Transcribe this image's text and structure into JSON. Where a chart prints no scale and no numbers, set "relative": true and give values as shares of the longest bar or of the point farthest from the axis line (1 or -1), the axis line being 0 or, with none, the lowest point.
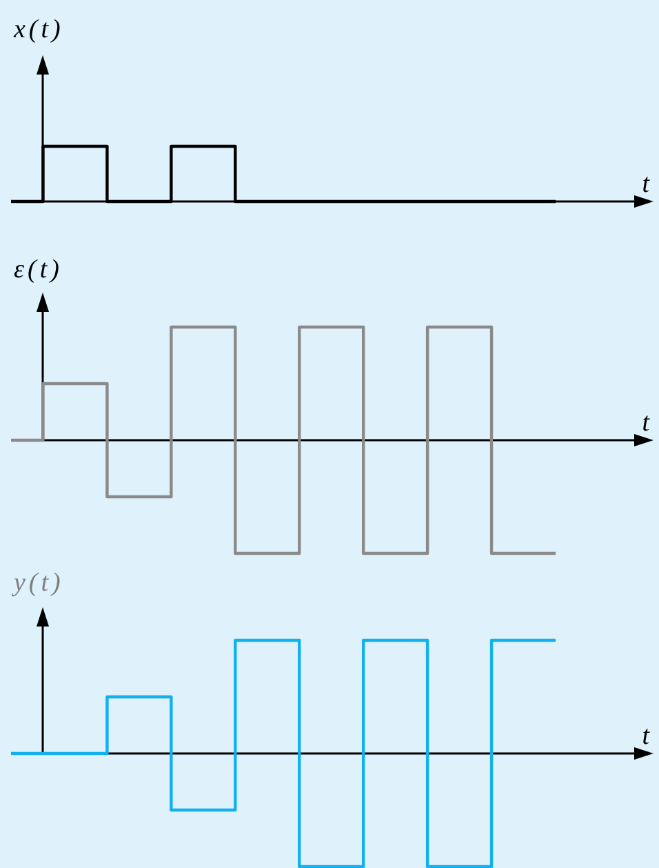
{
  "chart_data": [
    {
      "type": "step",
      "ylabel": "x(t)",
      "xlabel": "t",
      "relative": true,
      "categories": [
        null,
        null,
        null,
        null,
        null,
        null,
        null,
        null,
        null,
        null,
        null,
        null,
        null,
        null,
        null,
        null,
        null,
        null
      ],
      "series": [
        {
          "color": "#000000",
          "values": [
            0,
            1,
            1,
            0,
            0,
            1,
            1,
            0,
            0,
            0,
            0,
            0,
            0,
            0,
            0,
            0,
            0,
            0
          ]
        }
      ]
    },
    {
      "type": "step",
      "ylabel": "ε(t)",
      "xlabel": "t",
      "relative": true,
      "categories": [
        null,
        null,
        null,
        null,
        null,
        null,
        null,
        null,
        null,
        null,
        null,
        null,
        null,
        null,
        null,
        null,
        null,
        null
      ],
      "series": [
        {
          "color": "#8a8a8a",
          "values": [
            0,
            0.5,
            0.5,
            -0.5,
            -0.5,
            1,
            1,
            -1,
            -1,
            1,
            1,
            -1,
            -1,
            1,
            1,
            -1,
            -1,
            -1
          ]
        }
      ]
    },
    {
      "type": "step",
      "ylabel": "y(t)",
      "xlabel": "t",
      "relative": true,
      "categories": [
        null,
        null,
        null,
        null,
        null,
        null,
        null,
        null,
        null,
        null,
        null,
        null,
        null,
        null,
        null,
        null,
        null,
        null
      ],
      "series": [
        {
          "color": "#12b0ec",
          "values": [
            0,
            0,
            0,
            0.5,
            0.5,
            -0.5,
            -0.5,
            1,
            1,
            -1,
            -1,
            1,
            1,
            -1,
            -1,
            1,
            1,
            1
          ]
        }
      ]
    }
  ]
}
